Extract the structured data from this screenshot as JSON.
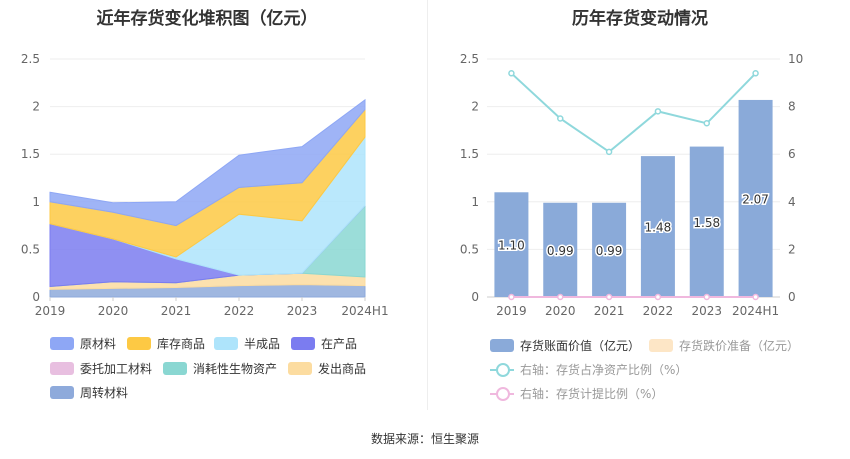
{
  "titles": {
    "left": "近年存货变化堆积图（亿元）",
    "right": "历年存货变动情况"
  },
  "source": "数据来源：恒生聚源",
  "chart_data": [
    {
      "type": "area",
      "stacked": true,
      "categories": [
        "2019",
        "2020",
        "2021",
        "2022",
        "2023",
        "2024H1"
      ],
      "ylim": [
        0,
        2.5
      ],
      "yticks": [
        "0",
        "0.5",
        "1",
        "1.5",
        "2",
        "2.5"
      ],
      "series": [
        {
          "name": "周转材料",
          "color": "#8eaadb",
          "values": [
            0.08,
            0.09,
            0.1,
            0.12,
            0.13,
            0.12
          ]
        },
        {
          "name": "委托加工材料",
          "color": "#e8bfe0",
          "values": [
            0.0,
            0.0,
            0.0,
            0.0,
            0.0,
            0.0
          ]
        },
        {
          "name": "发出商品",
          "color": "#fcdca0",
          "values": [
            0.03,
            0.07,
            0.05,
            0.11,
            0.12,
            0.09
          ]
        },
        {
          "name": "消耗性生物资产",
          "color": "#8ad7d2",
          "values": [
            0.0,
            0.0,
            0.0,
            0.0,
            0.0,
            0.75
          ]
        },
        {
          "name": "在产品",
          "color": "#7b7cf0",
          "values": [
            0.66,
            0.45,
            0.25,
            0.0,
            0.0,
            0.0
          ]
        },
        {
          "name": "半成品",
          "color": "#aee4fb",
          "values": [
            0.0,
            0.0,
            0.02,
            0.64,
            0.55,
            0.72
          ]
        },
        {
          "name": "库存商品",
          "color": "#fdc944",
          "values": [
            0.23,
            0.28,
            0.33,
            0.28,
            0.4,
            0.29
          ]
        },
        {
          "name": "原材料",
          "color": "#8ea7f5",
          "values": [
            0.1,
            0.1,
            0.25,
            0.34,
            0.38,
            0.1
          ]
        }
      ],
      "legend_order": [
        "原材料",
        "库存商品",
        "半成品",
        "在产品",
        "委托加工材料",
        "消耗性生物资产",
        "发出商品",
        "周转材料"
      ]
    },
    {
      "type": "bar",
      "categories": [
        "2019",
        "2020",
        "2021",
        "2022",
        "2023",
        "2024H1"
      ],
      "ylim": [
        0,
        2.5
      ],
      "yticks": [
        "0",
        "0.5",
        "1",
        "1.5",
        "2",
        "2.5"
      ],
      "y2lim": [
        0,
        10
      ],
      "y2ticks": [
        "0",
        "2",
        "4",
        "6",
        "8",
        "10"
      ],
      "series": [
        {
          "name": "存货账面价值（亿元）",
          "color": "#8aaad9",
          "values": [
            1.1,
            0.99,
            0.99,
            1.48,
            1.58,
            2.07
          ],
          "labels": [
            "1.10",
            "0.99",
            "0.99",
            "1.48",
            "1.58",
            "2.07"
          ]
        },
        {
          "name": "存货跌价准备（亿元）",
          "color": "#fde6c6",
          "values": [
            0,
            0,
            0,
            0,
            0,
            0
          ]
        }
      ],
      "lines": [
        {
          "name": "右轴：存货占净资产比例（%）",
          "color": "#8fd8dc",
          "values": [
            9.4,
            7.5,
            6.1,
            7.8,
            7.3,
            9.4
          ]
        },
        {
          "name": "右轴：存货计提比例（%）",
          "color": "#f0b8de",
          "values": [
            0,
            0,
            0,
            0,
            0,
            0
          ]
        }
      ]
    }
  ]
}
